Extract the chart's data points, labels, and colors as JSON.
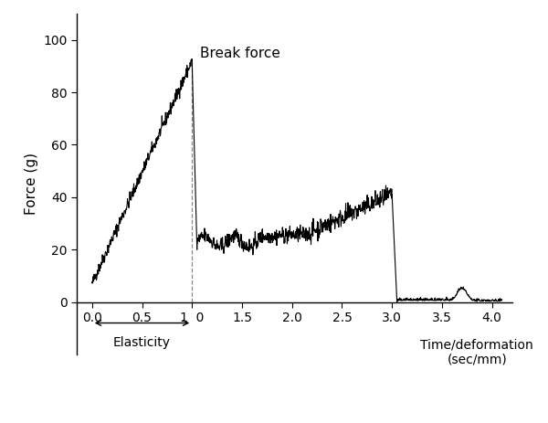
{
  "title": "",
  "xlabel": "Time/deformation\n(sec/mm)",
  "ylabel": "Force (g)",
  "xlim": [
    -0.15,
    4.2
  ],
  "ylim_bottom": -20,
  "ylim_top": 110,
  "yticks": [
    0,
    20,
    40,
    60,
    80,
    100
  ],
  "xticks": [
    0.0,
    0.5,
    1.0,
    1.5,
    2.0,
    2.5,
    3.0,
    3.5,
    4.0
  ],
  "xticklabels": [
    "0.0",
    "0.5",
    "1|0",
    "1.5",
    "2.0",
    "2.5",
    "3.0",
    "3.5",
    "4.0"
  ],
  "break_force_x": 1.0,
  "break_force_y": 92,
  "elasticity_x0": 0.0,
  "elasticity_x1": 1.0,
  "line_color": "#000000",
  "annotation_color": "#000000",
  "background_color": "#ffffff",
  "dpi": 100,
  "figsize": [
    6.0,
    4.63
  ]
}
